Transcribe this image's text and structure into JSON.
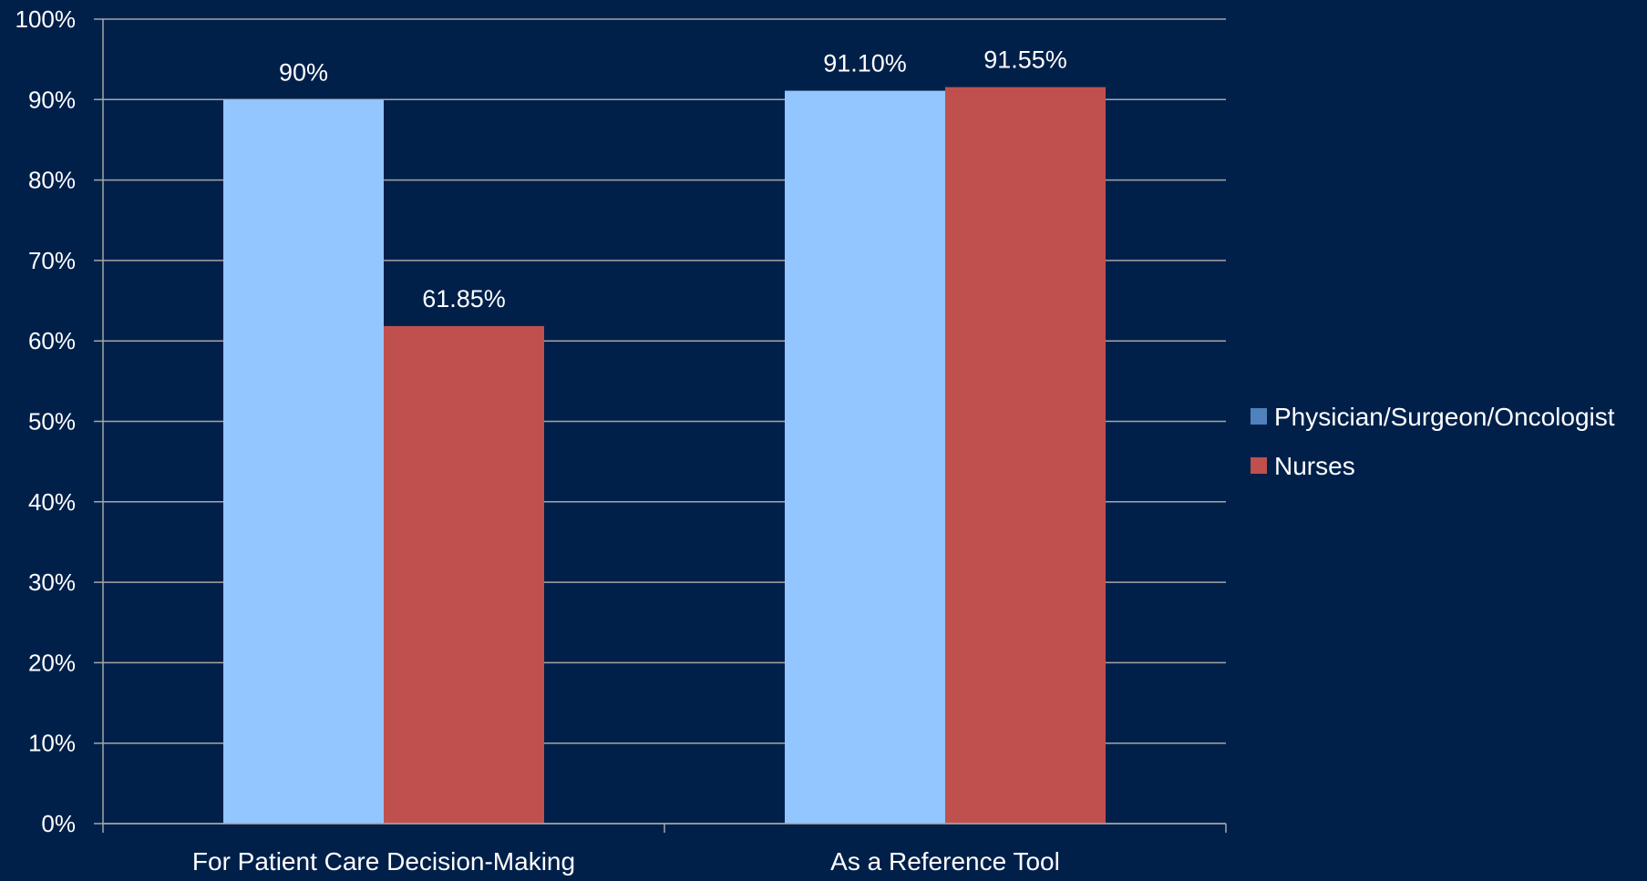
{
  "chart_data": {
    "type": "bar",
    "title": "",
    "xlabel": "",
    "ylabel": "",
    "categories": [
      "For Patient Care Decision-Making",
      "As a Reference Tool"
    ],
    "series": [
      {
        "name": "Physician/Surgeon/Oncologist",
        "values": [
          90,
          91.1
        ],
        "labels": [
          "90%",
          "91.10%"
        ],
        "bar_color": "#93c5ff",
        "legend_color": "#4f81bd"
      },
      {
        "name": "Nurses",
        "values": [
          61.85,
          91.55
        ],
        "labels": [
          "61.85%",
          "91.55%"
        ],
        "bar_color": "#c0504d",
        "legend_color": "#c0504d"
      }
    ],
    "ylim": [
      0,
      100
    ],
    "yticks": [
      0,
      10,
      20,
      30,
      40,
      50,
      60,
      70,
      80,
      90,
      100
    ],
    "ytick_labels": [
      "0%",
      "10%",
      "20%",
      "30%",
      "40%",
      "50%",
      "60%",
      "70%",
      "80%",
      "90%",
      "100%"
    ],
    "grid": true,
    "legend_position": "right"
  },
  "colors": {
    "background": "#00204a",
    "gridline": "#a6a6a6",
    "text": "#ffffff"
  }
}
